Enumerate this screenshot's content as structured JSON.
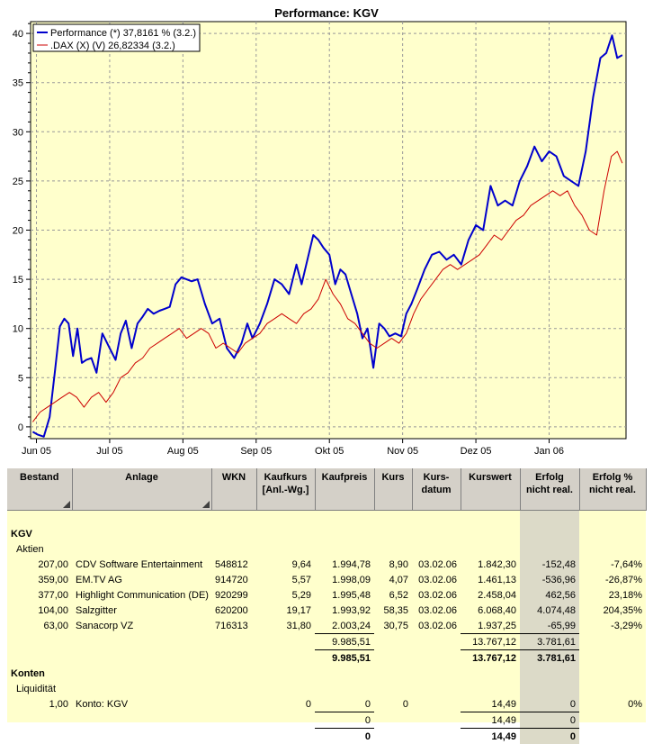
{
  "chart_data": {
    "type": "line",
    "title": "Performance: KGV",
    "y_ticks": [
      0,
      5,
      10,
      15,
      20,
      25,
      30,
      35,
      40
    ],
    "ylim": [
      -1.2,
      41.2
    ],
    "x_ticks": [
      {
        "label": "Jun 05",
        "pos": 0
      },
      {
        "label": "Jul 05",
        "pos": 1
      },
      {
        "label": "Aug 05",
        "pos": 2
      },
      {
        "label": "Sep 05",
        "pos": 3
      },
      {
        "label": "Okt 05",
        "pos": 4
      },
      {
        "label": "Nov 05",
        "pos": 5
      },
      {
        "label": "Dez 05",
        "pos": 6
      },
      {
        "label": "Jan 06",
        "pos": 7
      }
    ],
    "xlim": [
      -0.08,
      8.05
    ],
    "grid": true,
    "legend_position": "top-left",
    "series": [
      {
        "name": "Performance (*) 37,8161 % (3.2.)",
        "color": "#0000cc",
        "x": [
          -0.05,
          0.02,
          0.1,
          0.18,
          0.25,
          0.32,
          0.38,
          0.44,
          0.5,
          0.56,
          0.62,
          0.68,
          0.75,
          0.82,
          0.9,
          1.0,
          1.08,
          1.15,
          1.22,
          1.3,
          1.38,
          1.45,
          1.52,
          1.6,
          1.68,
          1.75,
          1.82,
          1.9,
          1.98,
          2.05,
          2.12,
          2.2,
          2.3,
          2.4,
          2.5,
          2.6,
          2.7,
          2.8,
          2.88,
          2.95,
          3.05,
          3.15,
          3.25,
          3.35,
          3.45,
          3.55,
          3.62,
          3.7,
          3.78,
          3.85,
          3.92,
          4.0,
          4.08,
          4.15,
          4.22,
          4.3,
          4.38,
          4.45,
          4.52,
          4.6,
          4.68,
          4.75,
          4.82,
          4.9,
          4.98,
          5.05,
          5.12,
          5.2,
          5.3,
          5.4,
          5.5,
          5.6,
          5.7,
          5.8,
          5.9,
          6.0,
          6.1,
          6.2,
          6.3,
          6.4,
          6.5,
          6.6,
          6.7,
          6.8,
          6.9,
          7.0,
          7.1,
          7.2,
          7.3,
          7.4,
          7.5,
          7.6,
          7.7,
          7.78,
          7.86,
          7.93,
          8.0
        ],
        "y": [
          -0.5,
          -0.8,
          -1.0,
          1.0,
          5.5,
          10.2,
          11.0,
          10.5,
          7.2,
          10.0,
          6.5,
          6.8,
          7.0,
          5.5,
          9.5,
          8.0,
          6.8,
          9.5,
          10.8,
          8.0,
          10.5,
          11.2,
          12.0,
          11.5,
          11.8,
          12.0,
          12.2,
          14.5,
          15.2,
          15.0,
          14.8,
          15.0,
          12.5,
          10.5,
          11.0,
          8.0,
          7.0,
          8.5,
          10.5,
          9.0,
          10.5,
          12.5,
          15.0,
          14.5,
          13.5,
          16.5,
          14.5,
          17.0,
          19.5,
          19.0,
          18.2,
          17.5,
          14.5,
          16.0,
          15.5,
          13.5,
          11.5,
          9.0,
          10.0,
          6.0,
          10.5,
          10.0,
          9.2,
          9.5,
          9.2,
          11.5,
          12.5,
          14.0,
          16.0,
          17.5,
          17.8,
          17.0,
          17.5,
          16.5,
          19.0,
          20.5,
          20.0,
          24.5,
          22.5,
          23.0,
          22.5,
          25.0,
          26.5,
          28.5,
          27.0,
          28.0,
          27.5,
          25.5,
          25.0,
          24.5,
          28.0,
          33.5,
          37.5,
          38.0,
          39.8,
          37.5,
          37.8
        ]
      },
      {
        "name": ".DAX (X) (V) 26,82334 (3.2.)",
        "color": "#cc0000",
        "x": [
          -0.05,
          0.05,
          0.15,
          0.25,
          0.35,
          0.45,
          0.55,
          0.65,
          0.75,
          0.85,
          0.95,
          1.05,
          1.15,
          1.25,
          1.35,
          1.45,
          1.55,
          1.65,
          1.75,
          1.85,
          1.95,
          2.05,
          2.15,
          2.25,
          2.35,
          2.45,
          2.55,
          2.65,
          2.75,
          2.85,
          2.95,
          3.05,
          3.15,
          3.25,
          3.35,
          3.45,
          3.55,
          3.65,
          3.75,
          3.85,
          3.95,
          4.05,
          4.15,
          4.25,
          4.35,
          4.45,
          4.55,
          4.65,
          4.75,
          4.85,
          4.95,
          5.05,
          5.15,
          5.25,
          5.35,
          5.45,
          5.55,
          5.65,
          5.75,
          5.85,
          5.95,
          6.05,
          6.15,
          6.25,
          6.35,
          6.45,
          6.55,
          6.65,
          6.75,
          6.85,
          6.95,
          7.05,
          7.15,
          7.25,
          7.35,
          7.45,
          7.55,
          7.65,
          7.75,
          7.85,
          7.93,
          8.0
        ],
        "y": [
          0.5,
          1.5,
          2.0,
          2.5,
          3.0,
          3.5,
          3.0,
          2.0,
          3.0,
          3.5,
          2.5,
          3.5,
          5.0,
          5.5,
          6.5,
          7.0,
          8.0,
          8.5,
          9.0,
          9.5,
          10.0,
          9.0,
          9.5,
          10.0,
          9.5,
          8.0,
          8.5,
          8.0,
          7.5,
          8.5,
          9.0,
          9.5,
          10.5,
          11.0,
          11.5,
          11.0,
          10.5,
          11.5,
          12.0,
          13.0,
          15.0,
          13.5,
          12.5,
          11.0,
          10.5,
          9.5,
          8.5,
          8.0,
          8.5,
          9.0,
          8.5,
          9.5,
          11.5,
          13.0,
          14.0,
          15.0,
          16.0,
          16.5,
          16.0,
          16.5,
          17.0,
          17.5,
          18.5,
          19.5,
          19.0,
          20.0,
          21.0,
          21.5,
          22.5,
          23.0,
          23.5,
          24.0,
          23.5,
          24.0,
          22.5,
          21.5,
          20.0,
          19.5,
          24.0,
          27.5,
          28.0,
          26.8
        ]
      }
    ]
  },
  "table": {
    "headers": [
      "Bestand",
      "Anlage",
      "WKN",
      "Kaufkurs [Anl.-Wg.]",
      "Kaufpreis",
      "Kurs",
      "Kurs-datum",
      "Kurswert",
      "Erfolg nicht real.",
      "Erfolg % nicht real."
    ],
    "section_kgv": "KGV",
    "subsection_aktien": "Aktien",
    "rows": [
      [
        "207,00",
        "CDV Software Entertainment",
        "548812",
        "9,64",
        "1.994,78",
        "8,90",
        "03.02.06",
        "1.842,30",
        "-152,48",
        "-7,64%"
      ],
      [
        "359,00",
        "EM.TV AG",
        "914720",
        "5,57",
        "1.998,09",
        "4,07",
        "03.02.06",
        "1.461,13",
        "-536,96",
        "-26,87%"
      ],
      [
        "377,00",
        "Highlight Communication (DE)",
        "920299",
        "5,29",
        "1.995,48",
        "6,52",
        "03.02.06",
        "2.458,04",
        "462,56",
        "23,18%"
      ],
      [
        "104,00",
        "Salzgitter",
        "620200",
        "19,17",
        "1.993,92",
        "58,35",
        "03.02.06",
        "6.068,40",
        "4.074,48",
        "204,35%"
      ],
      [
        "63,00",
        "Sanacorp VZ",
        "716313",
        "31,80",
        "2.003,24",
        "30,75",
        "03.02.06",
        "1.937,25",
        "-65,99",
        "-3,29%"
      ]
    ],
    "subtotal": {
      "kaufpreis": "9.985,51",
      "kurswert": "13.767,12",
      "erfolg": "3.781,61"
    },
    "total": {
      "kaufpreis": "9.985,51",
      "kurswert": "13.767,12",
      "erfolg": "3.781,61"
    },
    "section_konten": "Konten",
    "subsection_liquiditaet": "Liquidität",
    "konto_row": [
      "1,00",
      "Konto: KGV",
      "",
      "0",
      "0",
      "0",
      "",
      "14,49",
      "0",
      "0%"
    ],
    "konto_subtotal": {
      "kaufpreis": "0",
      "kurswert": "14,49",
      "erfolg": "0"
    },
    "konto_total": {
      "kaufpreis": "0",
      "kurswert": "14,49",
      "erfolg": "0"
    }
  }
}
